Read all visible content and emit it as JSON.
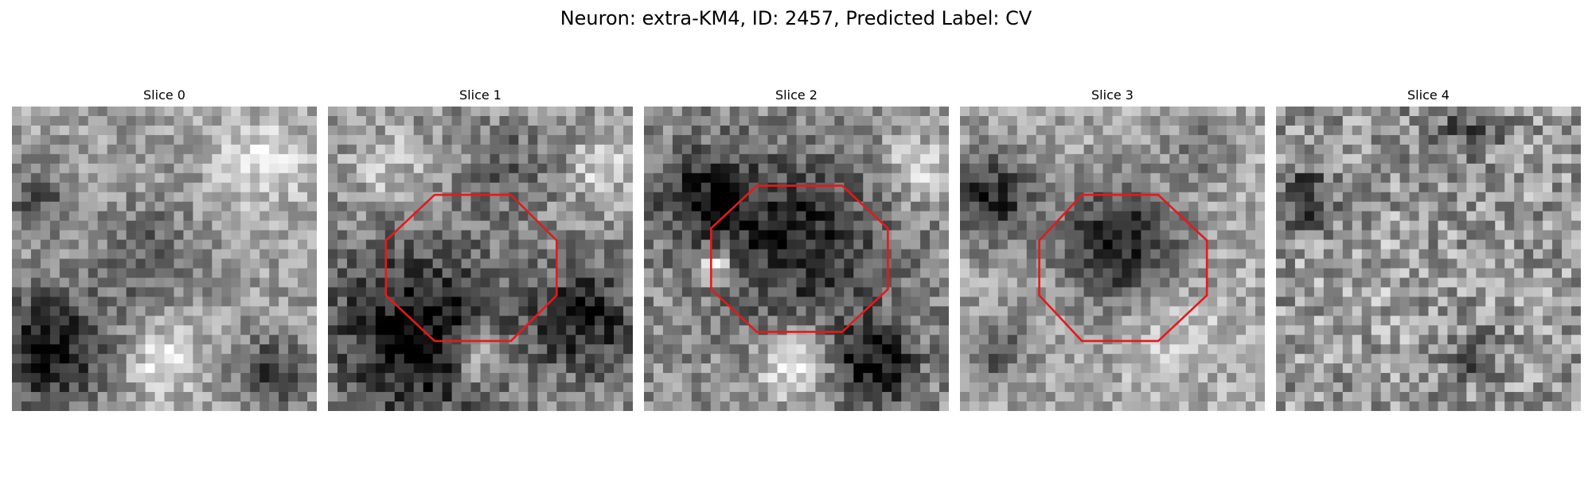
{
  "figure": {
    "title": "Neuron: extra-KM4, ID: 2457, Predicted Label: CV"
  },
  "panels": [
    {
      "title": "Slice 0",
      "roi_visible": false
    },
    {
      "title": "Slice 1",
      "roi_visible": true
    },
    {
      "title": "Slice 2",
      "roi_visible": true
    },
    {
      "title": "Slice 3",
      "roi_visible": true
    },
    {
      "title": "Slice 4",
      "roi_visible": false
    }
  ],
  "colors": {
    "background": "#ffffff",
    "roi_outline": "#e31a1c",
    "colormap": "gray"
  }
}
